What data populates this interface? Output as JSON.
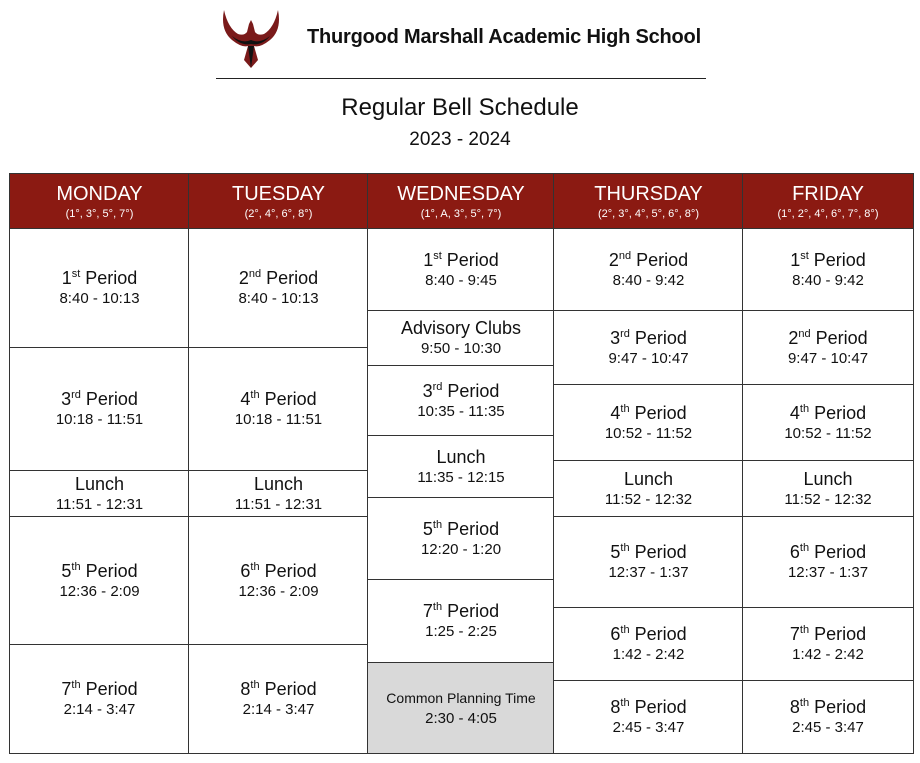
{
  "header": {
    "school": "Thurgood Marshall Academic High School",
    "title": "Regular Bell Schedule",
    "year": "2023 - 2024",
    "brand_color": "#8b1a12",
    "logo": "phoenix-logo"
  },
  "days": [
    {
      "day": "MONDAY",
      "periods": "(1°, 3°, 5°, 7°)",
      "blocks": [
        {
          "num": "1",
          "sup": "st",
          "label": "Period",
          "time": "8:40 - 10:13"
        },
        {
          "num": "3",
          "sup": "rd",
          "label": "Period",
          "time": "10:18 - 11:51"
        },
        {
          "num": "",
          "sup": "",
          "label": "Lunch",
          "time": "11:51 - 12:31"
        },
        {
          "num": "5",
          "sup": "th",
          "label": "Period",
          "time": "12:36 - 2:09"
        },
        {
          "num": "7",
          "sup": "th",
          "label": "Period",
          "time": "2:14 - 3:47"
        }
      ]
    },
    {
      "day": "TUESDAY",
      "periods": "(2°, 4°, 6°, 8°)",
      "blocks": [
        {
          "num": "2",
          "sup": "nd",
          "label": "Period",
          "time": "8:40 - 10:13"
        },
        {
          "num": "4",
          "sup": "th",
          "label": "Period",
          "time": "10:18 - 11:51"
        },
        {
          "num": "",
          "sup": "",
          "label": "Lunch",
          "time": "11:51 - 12:31"
        },
        {
          "num": "6",
          "sup": "th",
          "label": "Period",
          "time": "12:36 - 2:09"
        },
        {
          "num": "8",
          "sup": "th",
          "label": "Period",
          "time": "2:14 - 3:47"
        }
      ]
    },
    {
      "day": "WEDNESDAY",
      "periods": "(1°, A, 3°, 5°, 7°)",
      "blocks": [
        {
          "num": "1",
          "sup": "st",
          "label": "Period",
          "time": "8:40 - 9:45"
        },
        {
          "num": "",
          "sup": "",
          "label": "Advisory Clubs",
          "time": "9:50 - 10:30"
        },
        {
          "num": "3",
          "sup": "rd",
          "label": "Period",
          "time": "10:35 - 11:35"
        },
        {
          "num": "",
          "sup": "",
          "label": "Lunch",
          "time": "11:35 - 12:15"
        },
        {
          "num": "5",
          "sup": "th",
          "label": "Period",
          "time": "12:20 - 1:20"
        },
        {
          "num": "7",
          "sup": "th",
          "label": "Period",
          "time": "1:25 - 2:25"
        },
        {
          "num": "",
          "sup": "",
          "label": "Common Planning Time",
          "time": "2:30 - 4:05",
          "highlight": "#d9d9d9"
        }
      ]
    },
    {
      "day": "THURSDAY",
      "periods": "(2°, 3°, 4°, 5°, 6°, 8°)",
      "blocks": [
        {
          "num": "2",
          "sup": "nd",
          "label": "Period",
          "time": "8:40 - 9:42"
        },
        {
          "num": "3",
          "sup": "rd",
          "label": "Period",
          "time": "9:47 - 10:47"
        },
        {
          "num": "4",
          "sup": "th",
          "label": "Period",
          "time": "10:52 - 11:52"
        },
        {
          "num": "",
          "sup": "",
          "label": "Lunch",
          "time": "11:52 - 12:32"
        },
        {
          "num": "5",
          "sup": "th",
          "label": "Period",
          "time": "12:37 - 1:37"
        },
        {
          "num": "6",
          "sup": "th",
          "label": "Period",
          "time": "1:42 - 2:42"
        },
        {
          "num": "8",
          "sup": "th",
          "label": "Period",
          "time": "2:45 - 3:47"
        }
      ]
    },
    {
      "day": "FRIDAY",
      "periods": "(1°, 2°, 4°, 6°, 7°, 8°)",
      "blocks": [
        {
          "num": "1",
          "sup": "st",
          "label": "Period",
          "time": "8:40 - 9:42"
        },
        {
          "num": "2",
          "sup": "nd",
          "label": "Period",
          "time": "9:47 - 10:47"
        },
        {
          "num": "4",
          "sup": "th",
          "label": "Period",
          "time": "10:52 - 11:52"
        },
        {
          "num": "",
          "sup": "",
          "label": "Lunch",
          "time": "11:52 - 12:32"
        },
        {
          "num": "6",
          "sup": "th",
          "label": "Period",
          "time": "12:37 - 1:37"
        },
        {
          "num": "7",
          "sup": "th",
          "label": "Period",
          "time": "1:42 - 2:42"
        },
        {
          "num": "8",
          "sup": "th",
          "label": "Period",
          "time": "2:45 - 3:47"
        }
      ]
    }
  ]
}
